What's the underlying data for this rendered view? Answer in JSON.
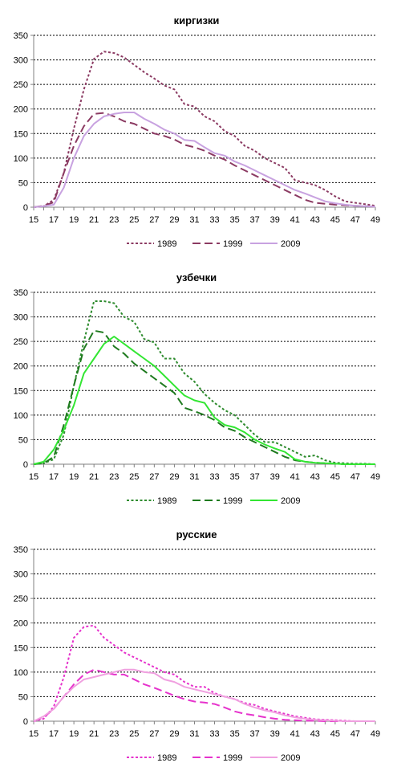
{
  "chart_data": [
    {
      "type": "line",
      "title": "киргизки",
      "xlabel": "",
      "ylabel": "",
      "x": [
        15,
        16,
        17,
        18,
        19,
        20,
        21,
        22,
        23,
        24,
        25,
        26,
        27,
        28,
        29,
        30,
        31,
        32,
        33,
        34,
        35,
        36,
        37,
        38,
        39,
        40,
        41,
        42,
        43,
        44,
        45,
        46,
        47,
        48,
        49
      ],
      "xticks": [
        15,
        17,
        19,
        21,
        23,
        25,
        27,
        29,
        31,
        33,
        35,
        37,
        39,
        41,
        43,
        45,
        47,
        49
      ],
      "xlim": [
        15,
        49
      ],
      "ylim": [
        0,
        350
      ],
      "yticks": [
        0,
        50,
        100,
        150,
        200,
        250,
        300,
        350
      ],
      "grid": true,
      "legend": "bottom",
      "series": [
        {
          "name": "1989",
          "style": "dotted",
          "color": "#8B3A62",
          "values": [
            0,
            2,
            15,
            70,
            160,
            240,
            302,
            317,
            314,
            305,
            290,
            275,
            262,
            248,
            240,
            210,
            205,
            185,
            175,
            155,
            145,
            125,
            115,
            100,
            90,
            80,
            55,
            50,
            45,
            35,
            22,
            12,
            9,
            6,
            3
          ]
        },
        {
          "name": "1999",
          "style": "dashed",
          "color": "#8B3A62",
          "values": [
            0,
            3,
            10,
            70,
            125,
            165,
            190,
            192,
            185,
            175,
            170,
            160,
            150,
            145,
            138,
            127,
            122,
            115,
            105,
            97,
            85,
            75,
            65,
            55,
            45,
            35,
            25,
            15,
            9,
            7,
            5,
            4,
            3,
            2,
            1
          ]
        },
        {
          "name": "2009",
          "style": "solid",
          "color": "#C8A2E0",
          "values": [
            0,
            2,
            5,
            40,
            100,
            145,
            170,
            185,
            190,
            193,
            193,
            180,
            170,
            158,
            150,
            137,
            135,
            122,
            110,
            105,
            93,
            85,
            75,
            65,
            55,
            45,
            35,
            28,
            20,
            12,
            8,
            5,
            3,
            2,
            1
          ]
        }
      ]
    },
    {
      "type": "line",
      "title": "узбечки",
      "xlabel": "",
      "ylabel": "",
      "x": [
        15,
        16,
        17,
        18,
        19,
        20,
        21,
        22,
        23,
        24,
        25,
        26,
        27,
        28,
        29,
        30,
        31,
        32,
        33,
        34,
        35,
        36,
        37,
        38,
        39,
        40,
        41,
        42,
        43,
        44,
        45,
        46,
        47,
        48,
        49
      ],
      "xticks": [
        15,
        17,
        19,
        21,
        23,
        25,
        27,
        29,
        31,
        33,
        35,
        37,
        39,
        41,
        43,
        45,
        47,
        49
      ],
      "xlim": [
        15,
        49
      ],
      "ylim": [
        0,
        350
      ],
      "yticks": [
        0,
        50,
        100,
        150,
        200,
        250,
        300,
        350
      ],
      "grid": true,
      "legend": "bottom",
      "series": [
        {
          "name": "1989",
          "style": "dotted",
          "color": "#2E8B2E",
          "values": [
            0,
            2,
            10,
            60,
            160,
            250,
            332,
            332,
            328,
            300,
            290,
            255,
            248,
            215,
            215,
            185,
            168,
            143,
            125,
            110,
            100,
            80,
            60,
            45,
            45,
            35,
            25,
            15,
            18,
            8,
            3,
            2,
            1,
            1,
            0
          ]
        },
        {
          "name": "1999",
          "style": "dashed",
          "color": "#1E7A1E",
          "values": [
            0,
            2,
            15,
            80,
            160,
            235,
            272,
            268,
            240,
            225,
            205,
            190,
            175,
            160,
            145,
            115,
            108,
            100,
            90,
            75,
            68,
            55,
            45,
            35,
            25,
            15,
            8,
            5,
            3,
            2,
            1,
            0,
            0,
            0,
            0
          ]
        },
        {
          "name": "2009",
          "style": "solid",
          "color": "#33E633",
          "values": [
            0,
            5,
            30,
            70,
            120,
            185,
            215,
            245,
            260,
            245,
            230,
            215,
            200,
            180,
            160,
            140,
            130,
            125,
            95,
            80,
            75,
            65,
            50,
            40,
            32,
            25,
            10,
            5,
            3,
            2,
            1,
            0,
            0,
            0,
            0
          ]
        }
      ]
    },
    {
      "type": "line",
      "title": "русские",
      "xlabel": "",
      "ylabel": "",
      "x": [
        15,
        16,
        17,
        18,
        19,
        20,
        21,
        22,
        23,
        24,
        25,
        26,
        27,
        28,
        29,
        30,
        31,
        32,
        33,
        34,
        35,
        36,
        37,
        38,
        39,
        40,
        41,
        42,
        43,
        44,
        45,
        46,
        47,
        48,
        49
      ],
      "xticks": [
        15,
        17,
        19,
        21,
        23,
        25,
        27,
        29,
        31,
        33,
        35,
        37,
        39,
        41,
        43,
        45,
        47,
        49
      ],
      "xlim": [
        15,
        49
      ],
      "ylim": [
        0,
        350
      ],
      "yticks": [
        0,
        50,
        100,
        150,
        200,
        250,
        300,
        350
      ],
      "grid": true,
      "legend": "bottom",
      "series": [
        {
          "name": "1989",
          "style": "dotted",
          "color": "#E633CC",
          "values": [
            0,
            5,
            30,
            90,
            170,
            192,
            195,
            170,
            155,
            140,
            130,
            120,
            110,
            100,
            95,
            80,
            70,
            70,
            57,
            50,
            45,
            37,
            33,
            25,
            20,
            15,
            10,
            7,
            4,
            3,
            2,
            1,
            0,
            0,
            0
          ]
        },
        {
          "name": "1999",
          "style": "dashed",
          "color": "#E633CC",
          "values": [
            0,
            8,
            25,
            50,
            75,
            95,
            105,
            100,
            95,
            95,
            85,
            75,
            68,
            60,
            52,
            45,
            40,
            38,
            35,
            28,
            20,
            15,
            12,
            8,
            5,
            3,
            2,
            1,
            1,
            0,
            0,
            0,
            0,
            0,
            0
          ]
        },
        {
          "name": "2009",
          "style": "solid",
          "color": "#F0A0E0",
          "values": [
            0,
            10,
            25,
            50,
            70,
            85,
            90,
            95,
            100,
            105,
            105,
            100,
            98,
            85,
            80,
            70,
            65,
            60,
            55,
            50,
            45,
            35,
            28,
            22,
            18,
            12,
            8,
            5,
            3,
            2,
            1,
            0,
            0,
            0,
            0
          ]
        }
      ]
    }
  ]
}
